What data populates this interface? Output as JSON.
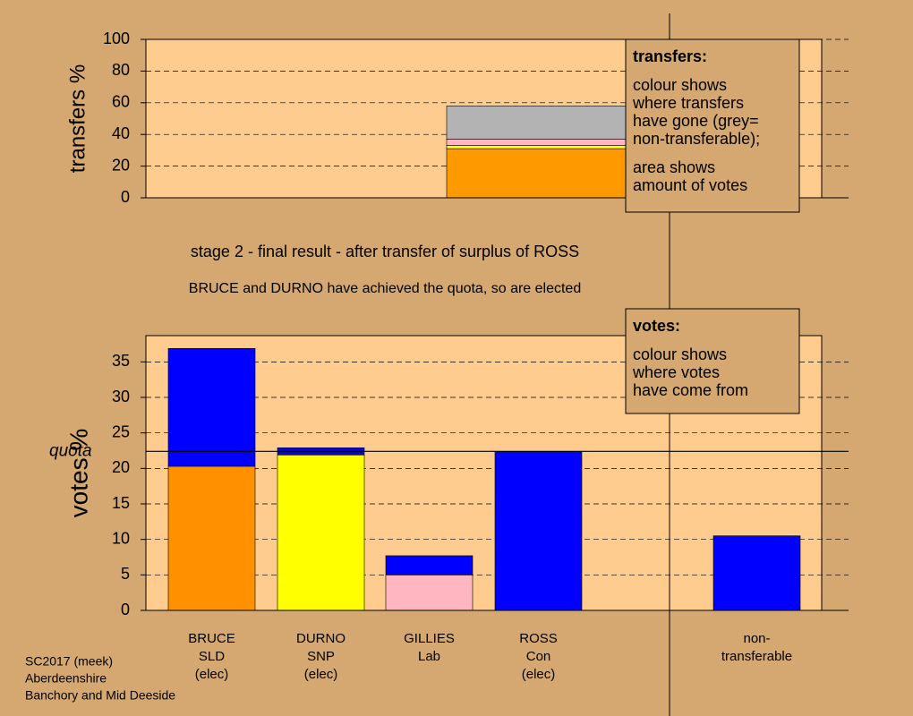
{
  "heading": {
    "title": "stage 2 - final result - after transfer of surplus of ROSS",
    "subtitle": "BRUCE and DURNO have achieved the quota, so are elected"
  },
  "chart_data": [
    {
      "type": "bar",
      "stacked": true,
      "ylabel": "transfers %",
      "ylim": [
        0,
        100
      ],
      "yticks": [
        0,
        20,
        40,
        60,
        80,
        100
      ],
      "grid": true,
      "series": [
        {
          "color": "#ff9900",
          "values": [
            31
          ]
        },
        {
          "color": "#ffff00",
          "values": [
            2
          ]
        },
        {
          "color": "#ffb6c1",
          "values": [
            4
          ]
        },
        {
          "color": "#b3b3b3",
          "values": [
            21
          ]
        }
      ],
      "annotation": {
        "heading": "transfers:",
        "lines": [
          "colour shows",
          "where transfers",
          "have gone (grey=",
          "non-transferable);",
          "area shows",
          "amount of votes"
        ]
      }
    },
    {
      "type": "bar",
      "stacked": true,
      "ylabel": "votes %",
      "ylim": [
        0,
        38.7
      ],
      "yticks": [
        0,
        5,
        10,
        15,
        20,
        25,
        30,
        35
      ],
      "grid": true,
      "categories": [
        [
          "BRUCE",
          "SLD",
          "(elec)"
        ],
        [
          "DURNO",
          "SNP",
          "(elec)"
        ],
        [
          "GILLIES",
          "Lab"
        ],
        [
          "ROSS",
          "Con",
          "(elec)"
        ],
        [
          "non-",
          "transferable"
        ]
      ],
      "series": [
        {
          "color": "#ff9100",
          "values": [
            20.3,
            null,
            null,
            null,
            null
          ]
        },
        {
          "color": "#ffff00",
          "values": [
            null,
            21.9,
            null,
            null,
            null
          ]
        },
        {
          "color": "#ffb6c1",
          "values": [
            null,
            null,
            5.0,
            null,
            null
          ]
        },
        {
          "color": "#0000ff",
          "values": [
            16.6,
            1.0,
            2.7,
            22.4,
            10.5
          ]
        }
      ],
      "quota": {
        "label": "quota",
        "value": 22.4
      },
      "annotation": {
        "heading": "votes:",
        "lines": [
          "colour shows",
          "where votes",
          "have come from"
        ]
      }
    }
  ],
  "footer": [
    "SC2017 (meek)",
    "Aberdeenshire",
    "Banchory and Mid Deeside"
  ]
}
